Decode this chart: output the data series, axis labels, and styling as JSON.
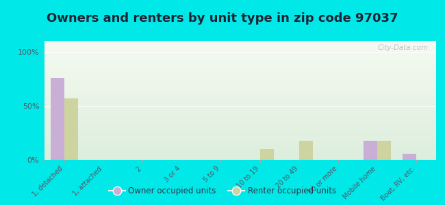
{
  "title": "Owners and renters by unit type in zip code 97037",
  "categories": [
    "1, detached",
    "1, attached",
    "2",
    "3 or 4",
    "5 to 9",
    "10 to 19",
    "20 to 49",
    "50 or more",
    "Mobile home",
    "Boat, RV, etc."
  ],
  "owner_values": [
    76,
    0,
    0,
    0,
    0,
    0,
    0,
    0,
    18,
    6
  ],
  "renter_values": [
    57,
    0,
    0,
    0,
    0,
    10,
    18,
    0,
    18,
    0
  ],
  "owner_color": "#c9aed6",
  "renter_color": "#cdd4a0",
  "background_color": "#00e8e8",
  "plot_bg_top": "#ddeedd",
  "plot_bg_bottom": "#f5faf0",
  "yticks": [
    0,
    50,
    100
  ],
  "ylim": [
    0,
    110
  ],
  "ylabel_labels": [
    "0%",
    "50%",
    "100%"
  ],
  "watermark": "City-Data.com",
  "legend_owner": "Owner occupied units",
  "legend_renter": "Renter occupied units",
  "bar_width": 0.35,
  "title_fontsize": 13,
  "tick_label_color": "#555566",
  "gridline_color": "#ffffff",
  "baseline_color": "#aaaaaa"
}
